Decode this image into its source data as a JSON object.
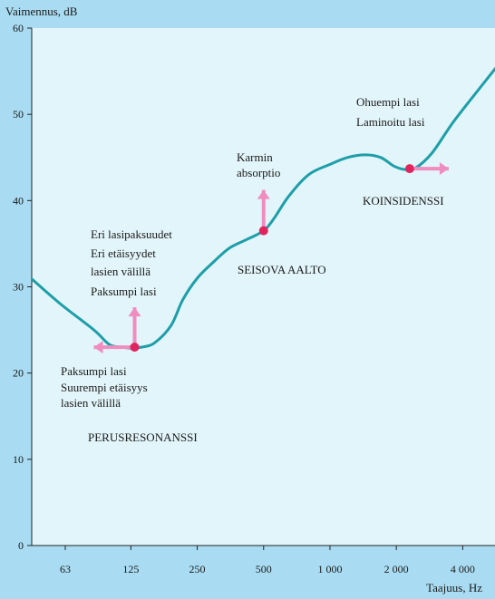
{
  "chart_data": {
    "type": "line",
    "ylabel": "Vaimennus, dB",
    "xlabel": "Taajuus, Hz",
    "ylim": [
      0,
      60
    ],
    "yticks": [
      0,
      10,
      20,
      30,
      40,
      50,
      60
    ],
    "x_scale": "log",
    "xticks": [
      "63",
      "125",
      "250",
      "500",
      "1 000",
      "2 000",
      "4 000"
    ],
    "xtick_values": [
      63,
      125,
      250,
      500,
      1000,
      2000,
      4000
    ],
    "colors": {
      "background": "#a9dcf2",
      "plot_area": "#e2f5fa",
      "curve": "#1e9ea8",
      "marker": "#e0245e",
      "arrow": "#f08cbf"
    },
    "series": [
      {
        "x": [
          44,
          60,
          85,
          100,
          115,
          125,
          140,
          160,
          190,
          215,
          250,
          300,
          350,
          420,
          500,
          560,
          650,
          800,
          1000,
          1200,
          1450,
          1700,
          1950,
          2200,
          2450,
          2900,
          3600,
          4600,
          5700
        ],
        "y": [
          31,
          28,
          25,
          23.3,
          23,
          22.9,
          23,
          23.5,
          25.5,
          28.5,
          31,
          33,
          34.5,
          35.5,
          36.5,
          38,
          40.5,
          43,
          44.2,
          45,
          45.3,
          45,
          44,
          43.6,
          43.8,
          45.5,
          49,
          52.5,
          55.5
        ]
      }
    ],
    "points": [
      {
        "x": 130,
        "y": 23,
        "arrow": "up-left"
      },
      {
        "x": 500,
        "y": 36.5,
        "arrow": "up"
      },
      {
        "x": 2300,
        "y": 43.7,
        "arrow": "right"
      }
    ],
    "annotations": {
      "zone_low": [
        "Paksumpi lasi",
        "Suurempi etäisyys",
        "lasien välillä"
      ],
      "zone_low_label": "PERUSRESONANSSI",
      "zone_mid_notes": [
        "Eri lasipaksuudet",
        "Eri etäisyydet",
        "lasien välillä",
        "Paksumpi lasi"
      ],
      "zone_mid_label": "SEISOVA AALTO",
      "frame_note": [
        "Karmin",
        "absorptio"
      ],
      "zone_high_notes": [
        "Ohuempi lasi",
        "Laminoitu lasi"
      ],
      "zone_high_label": "KOINSIDENSSI"
    }
  }
}
